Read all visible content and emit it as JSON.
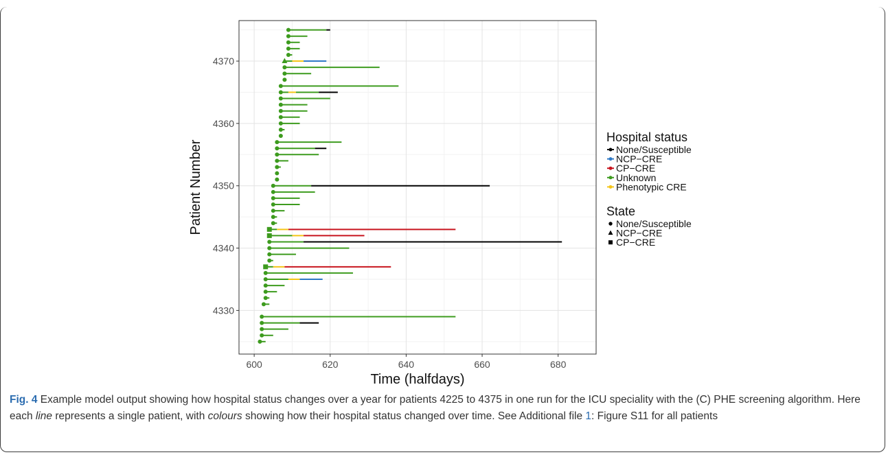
{
  "chart_data": {
    "type": "line",
    "xlabel": "Time (halfdays)",
    "ylabel": "Patient Number",
    "xlim": [
      596,
      690
    ],
    "ylim": [
      4323,
      4376.5
    ],
    "x_ticks": [
      600,
      620,
      640,
      660,
      680
    ],
    "y_ticks": [
      4330,
      4340,
      4350,
      4360,
      4370
    ],
    "grid": true,
    "legends": [
      {
        "title": "Hospital status",
        "entries": [
          {
            "label": "None/Susceptible",
            "color": "#000000"
          },
          {
            "label": "NCP−CRE",
            "color": "#2e78c6"
          },
          {
            "label": "CP−CRE",
            "color": "#c8141e"
          },
          {
            "label": "Unknown",
            "color": "#3d9b1e"
          },
          {
            "label": "Phenotypic CRE",
            "color": "#f5c518"
          }
        ]
      },
      {
        "title": "State",
        "entries": [
          {
            "label": "None/Susceptible",
            "marker": "circle"
          },
          {
            "label": "NCP−CRE",
            "marker": "triangle"
          },
          {
            "label": "CP−CRE",
            "marker": "square"
          }
        ]
      }
    ],
    "status_colors": {
      "none": "#000000",
      "ncp": "#2e78c6",
      "cp": "#c8141e",
      "unknown": "#3d9b1e",
      "pheno": "#f5c518"
    },
    "patients": [
      {
        "id": 4325,
        "marker": "circle",
        "segments": [
          [
            601.5,
            603,
            "unknown"
          ]
        ]
      },
      {
        "id": 4326,
        "marker": "circle",
        "segments": [
          [
            602,
            605,
            "unknown"
          ]
        ]
      },
      {
        "id": 4327,
        "marker": "circle",
        "segments": [
          [
            602,
            609,
            "unknown"
          ]
        ]
      },
      {
        "id": 4328,
        "marker": "circle",
        "segments": [
          [
            602,
            612,
            "unknown"
          ],
          [
            612,
            617,
            "none"
          ]
        ]
      },
      {
        "id": 4329,
        "marker": "circle",
        "segments": [
          [
            602,
            653,
            "unknown"
          ]
        ]
      },
      {
        "id": 4331,
        "marker": "circle",
        "segments": [
          [
            602.5,
            604,
            "unknown"
          ]
        ]
      },
      {
        "id": 4332,
        "marker": "circle",
        "segments": [
          [
            603,
            604,
            "unknown"
          ]
        ]
      },
      {
        "id": 4333,
        "marker": "circle",
        "segments": [
          [
            603,
            606,
            "unknown"
          ]
        ]
      },
      {
        "id": 4334,
        "marker": "circle",
        "segments": [
          [
            603,
            608,
            "unknown"
          ]
        ]
      },
      {
        "id": 4335,
        "marker": "circle",
        "segments": [
          [
            603,
            609,
            "unknown"
          ],
          [
            609,
            612,
            "pheno"
          ],
          [
            612,
            618,
            "ncp"
          ]
        ]
      },
      {
        "id": 4336,
        "marker": "circle",
        "segments": [
          [
            603,
            626,
            "unknown"
          ]
        ]
      },
      {
        "id": 4337,
        "marker": "square",
        "segments": [
          [
            603,
            605,
            "unknown"
          ],
          [
            605,
            608,
            "pheno"
          ],
          [
            608,
            636,
            "cp"
          ]
        ]
      },
      {
        "id": 4338,
        "marker": "circle",
        "segments": [
          [
            604,
            605,
            "unknown"
          ]
        ]
      },
      {
        "id": 4339,
        "marker": "circle",
        "segments": [
          [
            604,
            611,
            "unknown"
          ]
        ]
      },
      {
        "id": 4340,
        "marker": "circle",
        "segments": [
          [
            604,
            625,
            "unknown"
          ]
        ]
      },
      {
        "id": 4341,
        "marker": "circle",
        "segments": [
          [
            604,
            613,
            "unknown"
          ],
          [
            613,
            681,
            "none"
          ]
        ]
      },
      {
        "id": 4342,
        "marker": "square",
        "segments": [
          [
            604,
            610,
            "unknown"
          ],
          [
            610,
            613,
            "pheno"
          ],
          [
            613,
            629,
            "cp"
          ]
        ]
      },
      {
        "id": 4343,
        "marker": "square",
        "segments": [
          [
            604,
            606,
            "unknown"
          ],
          [
            606,
            609,
            "pheno"
          ],
          [
            609,
            653,
            "cp"
          ]
        ]
      },
      {
        "id": 4344,
        "marker": "circle",
        "segments": [
          [
            605,
            606,
            "unknown"
          ]
        ]
      },
      {
        "id": 4345,
        "marker": "circle",
        "segments": [
          [
            605,
            606,
            "unknown"
          ]
        ]
      },
      {
        "id": 4346,
        "marker": "circle",
        "segments": [
          [
            605,
            608,
            "unknown"
          ]
        ]
      },
      {
        "id": 4347,
        "marker": "circle",
        "segments": [
          [
            605,
            612,
            "unknown"
          ]
        ]
      },
      {
        "id": 4348,
        "marker": "circle",
        "segments": [
          [
            605,
            612,
            "unknown"
          ]
        ]
      },
      {
        "id": 4349,
        "marker": "circle",
        "segments": [
          [
            605,
            616,
            "unknown"
          ]
        ]
      },
      {
        "id": 4350,
        "marker": "circle",
        "segments": [
          [
            605,
            615,
            "unknown"
          ],
          [
            615,
            662,
            "none"
          ]
        ]
      },
      {
        "id": 4351,
        "marker": "circle",
        "segments": [
          [
            606,
            606.5,
            "unknown"
          ]
        ]
      },
      {
        "id": 4352,
        "marker": "circle",
        "segments": [
          [
            606,
            606.5,
            "unknown"
          ]
        ]
      },
      {
        "id": 4353,
        "marker": "circle",
        "segments": [
          [
            606,
            607,
            "unknown"
          ]
        ]
      },
      {
        "id": 4354,
        "marker": "circle",
        "segments": [
          [
            606,
            609,
            "unknown"
          ]
        ]
      },
      {
        "id": 4355,
        "marker": "circle",
        "segments": [
          [
            606,
            617,
            "unknown"
          ]
        ]
      },
      {
        "id": 4356,
        "marker": "circle",
        "segments": [
          [
            606,
            616,
            "unknown"
          ],
          [
            616,
            619,
            "none"
          ]
        ]
      },
      {
        "id": 4357,
        "marker": "circle",
        "segments": [
          [
            606,
            623,
            "unknown"
          ]
        ]
      },
      {
        "id": 4358,
        "marker": "circle",
        "segments": [
          [
            607,
            607.5,
            "unknown"
          ]
        ]
      },
      {
        "id": 4359,
        "marker": "circle",
        "segments": [
          [
            607,
            608,
            "unknown"
          ]
        ]
      },
      {
        "id": 4360,
        "marker": "circle",
        "segments": [
          [
            607,
            612,
            "unknown"
          ]
        ]
      },
      {
        "id": 4361,
        "marker": "circle",
        "segments": [
          [
            607,
            612,
            "unknown"
          ]
        ]
      },
      {
        "id": 4362,
        "marker": "circle",
        "segments": [
          [
            607,
            614,
            "unknown"
          ]
        ]
      },
      {
        "id": 4363,
        "marker": "circle",
        "segments": [
          [
            607,
            614,
            "unknown"
          ]
        ]
      },
      {
        "id": 4364,
        "marker": "circle",
        "segments": [
          [
            607,
            620,
            "unknown"
          ]
        ]
      },
      {
        "id": 4365,
        "marker": "circle",
        "segments": [
          [
            607,
            609,
            "unknown"
          ],
          [
            609,
            611,
            "pheno"
          ],
          [
            611,
            617,
            "unknown"
          ],
          [
            617,
            622,
            "none"
          ]
        ]
      },
      {
        "id": 4366,
        "marker": "circle",
        "segments": [
          [
            607,
            638,
            "unknown"
          ]
        ]
      },
      {
        "id": 4367,
        "marker": "circle",
        "segments": [
          [
            608,
            608.5,
            "unknown"
          ]
        ]
      },
      {
        "id": 4368,
        "marker": "circle",
        "segments": [
          [
            608,
            615,
            "unknown"
          ]
        ]
      },
      {
        "id": 4369,
        "marker": "circle",
        "segments": [
          [
            608,
            633,
            "unknown"
          ]
        ]
      },
      {
        "id": 4370,
        "marker": "triangle",
        "segments": [
          [
            608,
            610,
            "unknown"
          ],
          [
            610,
            613,
            "pheno"
          ],
          [
            613,
            619,
            "ncp"
          ]
        ]
      },
      {
        "id": 4371,
        "marker": "circle",
        "segments": [
          [
            609,
            610,
            "unknown"
          ]
        ]
      },
      {
        "id": 4372,
        "marker": "circle",
        "segments": [
          [
            609,
            612,
            "unknown"
          ]
        ]
      },
      {
        "id": 4373,
        "marker": "circle",
        "segments": [
          [
            609,
            612,
            "unknown"
          ]
        ]
      },
      {
        "id": 4374,
        "marker": "circle",
        "segments": [
          [
            609,
            614,
            "unknown"
          ]
        ]
      },
      {
        "id": 4375,
        "marker": "circle",
        "segments": [
          [
            609,
            619,
            "unknown"
          ],
          [
            619,
            620,
            "none"
          ]
        ]
      }
    ]
  },
  "caption": {
    "label": "Fig. 4",
    "text_1": " Example model output showing how hospital status changes over a year for patients 4225 to 4375 in one run for the ICU speciality with the (C) PHE screening algorithm. Here each ",
    "emph_line": "line",
    "text_2": " represents a single patient, with ",
    "emph_colours": "colours",
    "text_3": " showing how their hospital status changed over time. See Additional file ",
    "link": "1",
    "text_4": ": Figure S11 for all patients"
  }
}
